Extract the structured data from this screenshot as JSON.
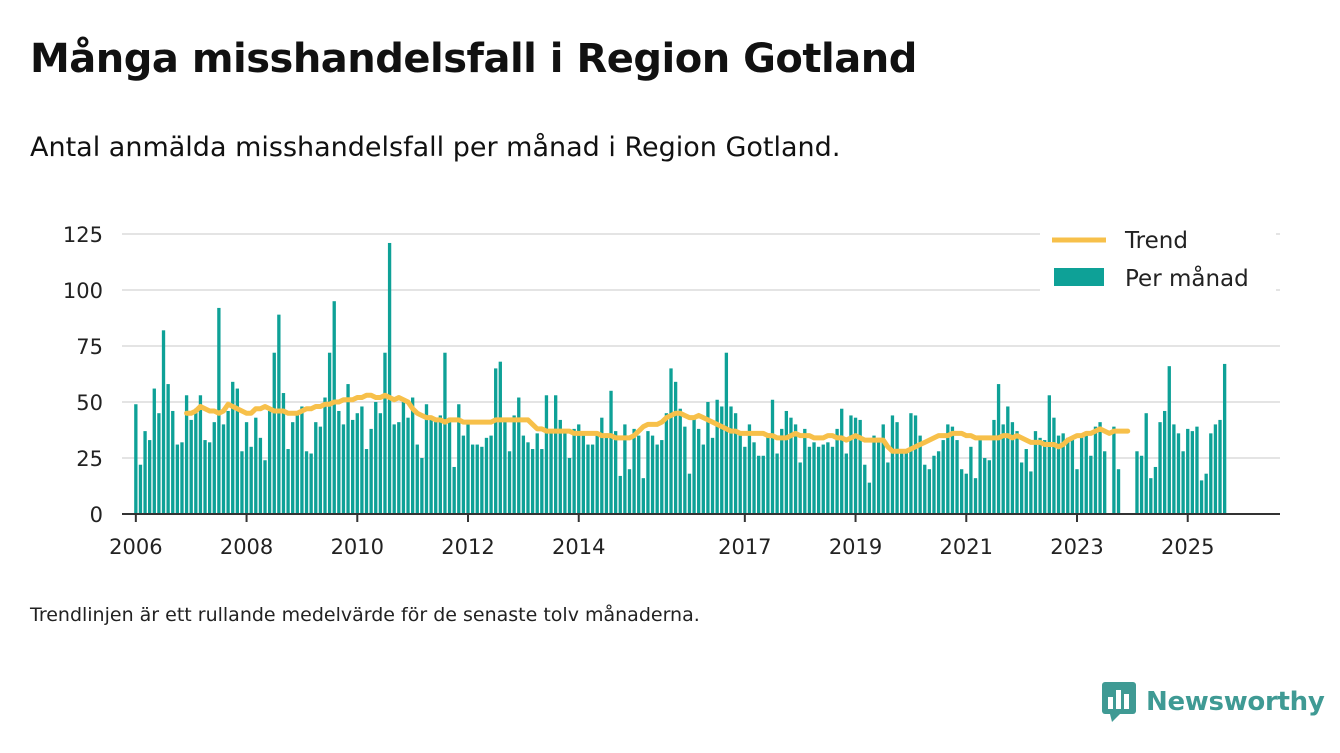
{
  "title": "Många misshandelsfall i Region Gotland",
  "subtitle": "Antal anmälda misshandelsfall per månad i Region Gotland.",
  "footnote": "Trendlinjen är ett rullande medelvärde för de senaste tolv månaderna.",
  "brand": {
    "name": "Newsworthy",
    "icon": "newsworthy-logo-icon",
    "color": "#3f9a94"
  },
  "colors": {
    "bars": "#0ea197",
    "trend": "#f7c04a",
    "grid": "#dcdcdc",
    "axis": "#333333"
  },
  "chart_data": {
    "type": "bar",
    "title": "",
    "xlabel": "",
    "ylabel": "",
    "ylim": [
      0,
      125
    ],
    "yticks": [
      0,
      25,
      50,
      75,
      100,
      125
    ],
    "xlim": [
      "2005-10",
      "2026-09"
    ],
    "xticks": [
      {
        "date": "2006-01",
        "label": "2006"
      },
      {
        "date": "2008-01",
        "label": "2008"
      },
      {
        "date": "2010-01",
        "label": "2010"
      },
      {
        "date": "2012-01",
        "label": "2012"
      },
      {
        "date": "2014-01",
        "label": "2014"
      },
      {
        "date": "2017-01",
        "label": "2017"
      },
      {
        "date": "2019-01",
        "label": "2019"
      },
      {
        "date": "2021-01",
        "label": "2021"
      },
      {
        "date": "2023-01",
        "label": "2023"
      },
      {
        "date": "2025-01",
        "label": "2025"
      }
    ],
    "grid": true,
    "legend_position": "top-right",
    "start_month": "2006-01",
    "series": [
      {
        "name": "Per månad",
        "type": "bar",
        "values": [
          49,
          22,
          37,
          33,
          56,
          45,
          82,
          58,
          46,
          31,
          32,
          53,
          42,
          47,
          53,
          33,
          32,
          41,
          92,
          40,
          46,
          59,
          56,
          28,
          41,
          30,
          43,
          34,
          24,
          46,
          72,
          89,
          54,
          29,
          41,
          45,
          48,
          28,
          27,
          41,
          39,
          52,
          72,
          95,
          46,
          40,
          58,
          42,
          45,
          48,
          29,
          38,
          50,
          45,
          72,
          121,
          40,
          41,
          50,
          43,
          52,
          31,
          25,
          49,
          42,
          43,
          44,
          72,
          43,
          21,
          49,
          35,
          42,
          31,
          31,
          30,
          34,
          35,
          65,
          68,
          42,
          28,
          44,
          52,
          35,
          32,
          29,
          36,
          29,
          53,
          36,
          53,
          42,
          36,
          25,
          38,
          40,
          36,
          31,
          31,
          35,
          43,
          36,
          55,
          37,
          17,
          40,
          20,
          38,
          35,
          16,
          37,
          35,
          31,
          33,
          45,
          65,
          59,
          47,
          39,
          18,
          43,
          38,
          31,
          50,
          34,
          51,
          48,
          72,
          48,
          45,
          37,
          30,
          40,
          32,
          26,
          26,
          36,
          51,
          27,
          38,
          46,
          43,
          40,
          23,
          38,
          30,
          32,
          30,
          31,
          32,
          30,
          38,
          47,
          27,
          44,
          43,
          42,
          22,
          14,
          35,
          34,
          40,
          23,
          44,
          41,
          27,
          29,
          45,
          44,
          35,
          22,
          20,
          26,
          28,
          33,
          40,
          39,
          33,
          20,
          18,
          30,
          16,
          33,
          25,
          24,
          42,
          58,
          40,
          48,
          41,
          37,
          23,
          29,
          19,
          37,
          34,
          33,
          53,
          43,
          35,
          36,
          34,
          34,
          20,
          35,
          35,
          26,
          39,
          41,
          28,
          0,
          39,
          20,
          0,
          0,
          0,
          28,
          26,
          45,
          16,
          21,
          41,
          46,
          66,
          40,
          36,
          28,
          38,
          37,
          39,
          15,
          18,
          36,
          40,
          42,
          67
        ]
      },
      {
        "name": "Trend",
        "type": "line",
        "start_month": "2006-12",
        "values": [
          45,
          45,
          46,
          48,
          47,
          46,
          46,
          45,
          46,
          49,
          48,
          47,
          46,
          45,
          45,
          47,
          47,
          48,
          47,
          46,
          46,
          46,
          45,
          45,
          45,
          46,
          47,
          47,
          48,
          48,
          49,
          49,
          50,
          50,
          51,
          51,
          51,
          52,
          52,
          53,
          53,
          52,
          52,
          53,
          52,
          51,
          52,
          51,
          50,
          47,
          45,
          44,
          43,
          43,
          42,
          42,
          41,
          42,
          42,
          42,
          41,
          41,
          41,
          41,
          41,
          41,
          41,
          42,
          42,
          42,
          42,
          42,
          42,
          42,
          42,
          40,
          38,
          38,
          37,
          37,
          37,
          37,
          37,
          37,
          36,
          36,
          36,
          36,
          36,
          36,
          35,
          35,
          35,
          34,
          34,
          34,
          34,
          35,
          37,
          39,
          40,
          40,
          40,
          41,
          43,
          44,
          45,
          45,
          44,
          43,
          43,
          44,
          43,
          42,
          41,
          40,
          39,
          38,
          37,
          37,
          36,
          36,
          36,
          36,
          36,
          36,
          35,
          35,
          34,
          34,
          34,
          35,
          36,
          35,
          35,
          35,
          34,
          34,
          34,
          35,
          35,
          34,
          34,
          33,
          34,
          35,
          34,
          33,
          33,
          33,
          33,
          33,
          30,
          28,
          28,
          28,
          28,
          29,
          30,
          31,
          32,
          33,
          34,
          35,
          35,
          35,
          36,
          36,
          36,
          35,
          35,
          34,
          34,
          34,
          34,
          34,
          34,
          35,
          35,
          34,
          35,
          34,
          33,
          32,
          32,
          32,
          31,
          31,
          31,
          30,
          31,
          33,
          34,
          35,
          35,
          36,
          36,
          37,
          38,
          37,
          36,
          37,
          37,
          37,
          37
        ]
      }
    ]
  }
}
